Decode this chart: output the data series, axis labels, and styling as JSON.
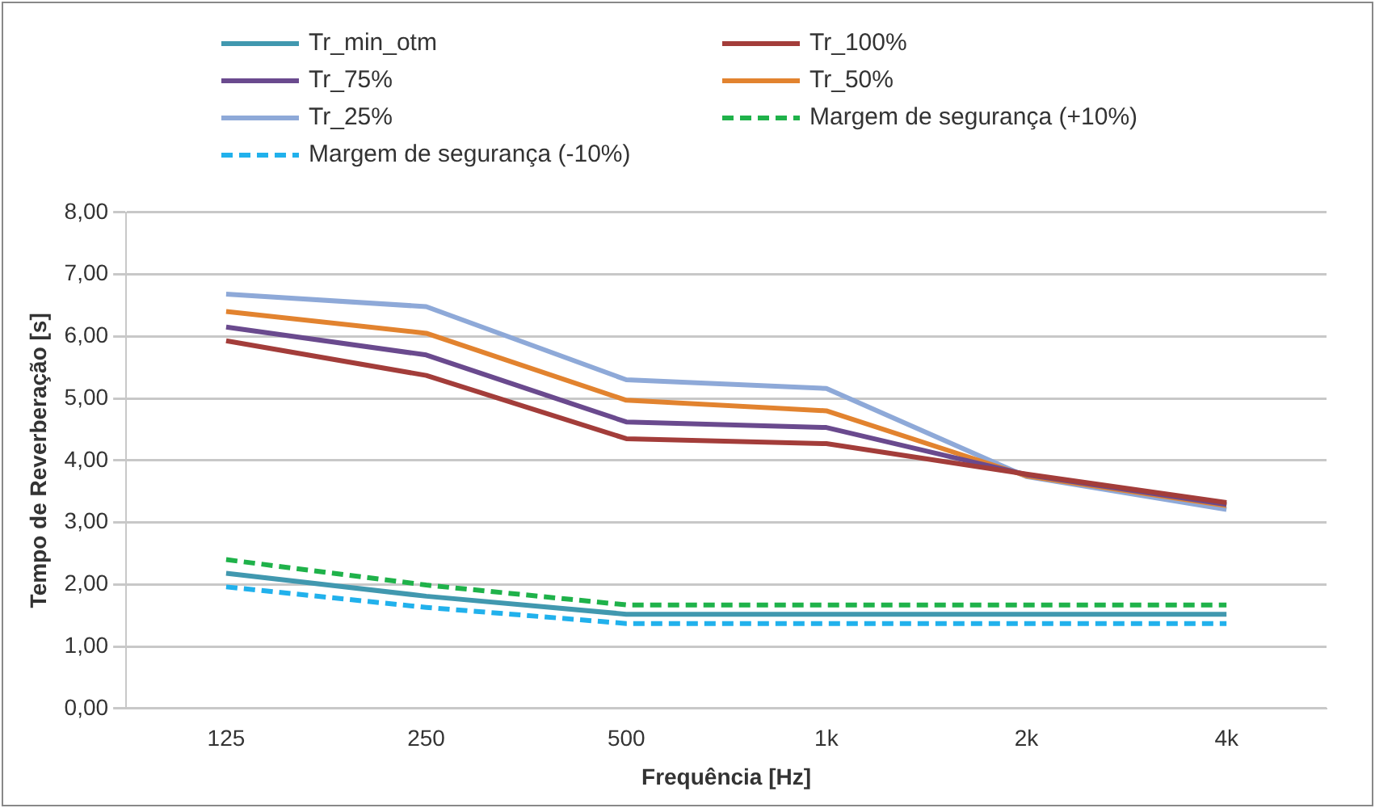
{
  "chart_data": {
    "type": "line",
    "xlabel": "Frequência [Hz]",
    "ylabel": "Tempo de Reverberação [s]",
    "categories": [
      "125",
      "250",
      "500",
      "1k",
      "2k",
      "4k"
    ],
    "series": [
      {
        "name": "Tr_min_otm",
        "color": "#4198af",
        "values": [
          2.18,
          1.81,
          1.52,
          1.52,
          1.52,
          1.52
        ]
      },
      {
        "name": "Tr_100%",
        "color": "#a33d3a",
        "values": [
          5.93,
          5.37,
          4.35,
          4.27,
          3.78,
          3.32
        ]
      },
      {
        "name": "Tr_75%",
        "color": "#6a4a8e",
        "values": [
          6.15,
          5.7,
          4.62,
          4.53,
          3.77,
          3.29
        ]
      },
      {
        "name": "Tr_50%",
        "color": "#e2832f",
        "values": [
          6.4,
          6.05,
          4.97,
          4.8,
          3.75,
          3.27
        ]
      },
      {
        "name": "Tr_25%",
        "color": "#8ea9d8",
        "values": [
          6.68,
          6.48,
          5.3,
          5.16,
          3.74,
          3.21
        ]
      },
      {
        "name": "Margem de segurança (+10%)",
        "color": "#1fb24a",
        "line_style": "dashed",
        "values": [
          2.4,
          1.99,
          1.67,
          1.67,
          1.67,
          1.67
        ]
      },
      {
        "name": "Margem de segurança (-10%)",
        "color": "#21b1ec",
        "line_style": "dashed",
        "values": [
          1.96,
          1.63,
          1.37,
          1.37,
          1.37,
          1.37
        ]
      }
    ],
    "ylim": [
      0,
      8
    ],
    "yticks": [
      {
        "value": 0,
        "label": "0,00"
      },
      {
        "value": 1,
        "label": "1,00"
      },
      {
        "value": 2,
        "label": "2,00"
      },
      {
        "value": 3,
        "label": "3,00"
      },
      {
        "value": 4,
        "label": "4,00"
      },
      {
        "value": 5,
        "label": "5,00"
      },
      {
        "value": 6,
        "label": "6,00"
      },
      {
        "value": 7,
        "label": "7,00"
      },
      {
        "value": 8,
        "label": "8,00"
      }
    ],
    "grid": "y",
    "legend": "top",
    "marker": "none",
    "line_style": "solid"
  }
}
